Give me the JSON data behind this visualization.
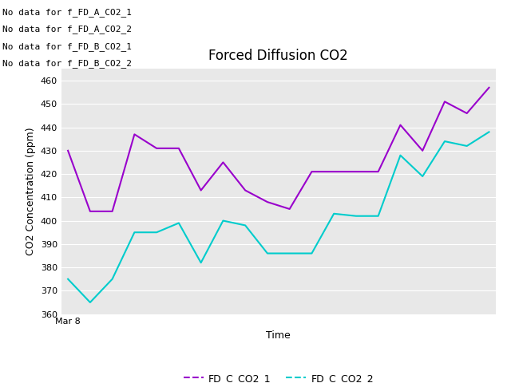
{
  "title": "Forced Diffusion CO2",
  "xlabel": "Time",
  "ylabel": "CO2 Concentration (ppm)",
  "xticklabel": "Mar 8",
  "ylim": [
    360,
    465
  ],
  "yticks": [
    360,
    370,
    380,
    390,
    400,
    410,
    420,
    430,
    440,
    450,
    460
  ],
  "fig_bg_color": "#ffffff",
  "plot_bg_color": "#e8e8e8",
  "series1_label": "FD_C_CO2_1",
  "series2_label": "FD_C_CO2_2",
  "series1_color": "#9900cc",
  "series2_color": "#00cccc",
  "series1_y": [
    430,
    404,
    404,
    437,
    431,
    431,
    413,
    425,
    413,
    408,
    405,
    421,
    421,
    421,
    421,
    441,
    430,
    451,
    446,
    457
  ],
  "series2_y": [
    375,
    365,
    375,
    395,
    395,
    399,
    382,
    400,
    398,
    386,
    386,
    386,
    403,
    402,
    402,
    428,
    419,
    434,
    432,
    438
  ],
  "no_data_messages": [
    "No data for f_FD_A_CO2_1",
    "No data for f_FD_A_CO2_2",
    "No data for f_FD_B_CO2_1",
    "No data for f_FD_B_CO2_2"
  ],
  "grid_color": "#ffffff",
  "title_fontsize": 12,
  "axis_label_fontsize": 9,
  "tick_fontsize": 8,
  "legend_fontsize": 9,
  "no_data_fontsize": 8
}
